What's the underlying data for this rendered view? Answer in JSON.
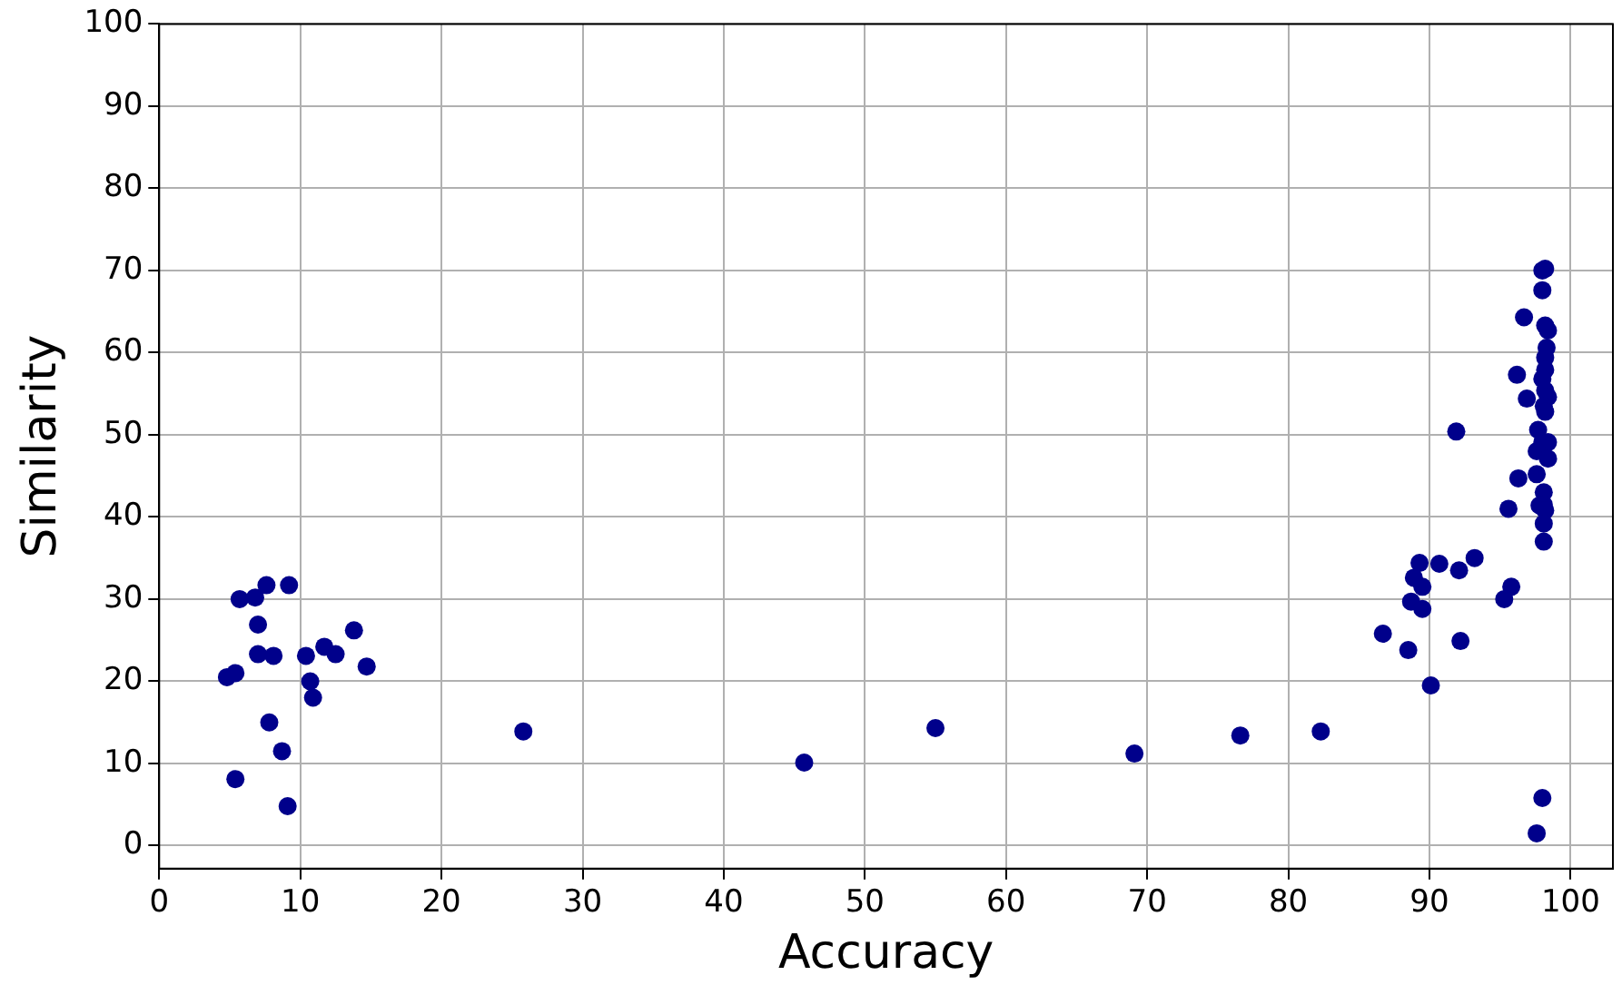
{
  "chart_data": {
    "type": "scatter",
    "xlabel": "Accuracy",
    "ylabel": "Similarity",
    "xlim": [
      0,
      103
    ],
    "ylim": [
      -2.8,
      100
    ],
    "xticks": [
      0,
      10,
      20,
      30,
      40,
      50,
      60,
      70,
      80,
      90,
      100
    ],
    "yticks": [
      0,
      10,
      20,
      30,
      40,
      50,
      60,
      70,
      80,
      90,
      100
    ],
    "grid": true,
    "marker": "circle",
    "series": [
      {
        "color": "#00008b",
        "x": [
          4.8,
          5.4,
          5.7,
          6.8,
          7.6,
          7.0,
          7.0,
          8.1,
          9.2,
          7.8,
          8.7,
          5.4,
          9.1,
          10.4,
          10.7,
          10.9,
          11.7,
          12.5,
          13.8,
          14.7,
          25.8,
          45.7,
          55.0,
          69.1,
          76.6,
          82.3,
          98.0,
          98.2,
          98.0,
          96.7,
          98.2,
          98.4,
          98.3,
          96.2,
          98.2,
          98.2,
          98.0,
          96.9,
          98.2,
          98.4,
          98.1,
          98.2,
          91.9,
          97.7,
          98.0,
          98.4,
          97.6,
          98.4,
          96.3,
          97.6,
          98.1,
          98.1,
          95.6,
          97.8,
          98.2,
          98.1,
          98.1,
          93.2,
          90.7,
          89.3,
          92.1,
          88.9,
          89.5,
          95.8,
          95.3,
          88.7,
          89.5,
          86.7,
          88.5,
          92.2,
          90.1,
          98.0,
          97.6
        ],
        "values": [
          20.5,
          21.0,
          30.0,
          30.2,
          31.7,
          26.9,
          23.3,
          23.1,
          31.7,
          15.0,
          11.5,
          8.1,
          4.8,
          23.1,
          20.0,
          18.0,
          24.2,
          23.3,
          26.2,
          21.8,
          13.9,
          10.1,
          14.3,
          11.2,
          13.4,
          13.9,
          70.0,
          70.2,
          67.6,
          64.3,
          63.3,
          62.7,
          60.6,
          57.3,
          59.4,
          57.9,
          56.8,
          54.4,
          55.4,
          54.6,
          53.5,
          52.8,
          50.4,
          50.6,
          49.1,
          49.1,
          48.0,
          47.1,
          44.7,
          45.2,
          43.0,
          41.5,
          41.0,
          41.4,
          40.8,
          39.2,
          37.0,
          35.0,
          34.3,
          34.4,
          33.5,
          32.6,
          31.5,
          31.5,
          30.0,
          29.7,
          28.8,
          25.8,
          23.8,
          24.9,
          19.5,
          5.8,
          1.5
        ]
      }
    ]
  }
}
